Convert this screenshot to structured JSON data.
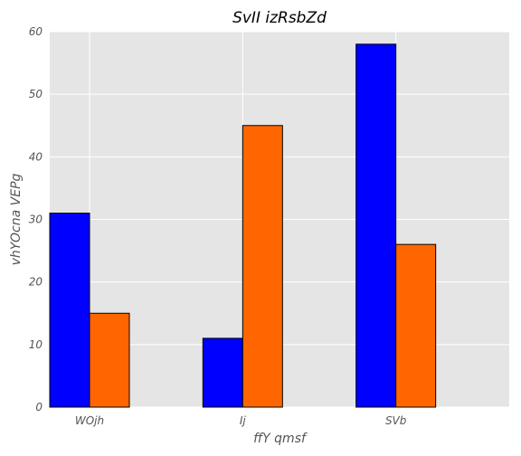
{
  "chart_data": {
    "type": "bar",
    "title": "SvII izRsbZd",
    "xlabel": "ffY qmsf",
    "ylabel": "vhYOcna VEPg",
    "categories": [
      "WOjh",
      "Ij",
      "SVb"
    ],
    "series": [
      {
        "values": [
          31,
          11,
          58
        ],
        "color": "#0000ff"
      },
      {
        "values": [
          15,
          45,
          26
        ],
        "color": "#ff6600"
      }
    ],
    "ylim": [
      0,
      60
    ],
    "yticks": [
      0,
      10,
      20,
      30,
      40,
      50,
      60
    ],
    "grid": true,
    "plot_background": "#e5e5e5",
    "grid_color": "#ffffff"
  }
}
